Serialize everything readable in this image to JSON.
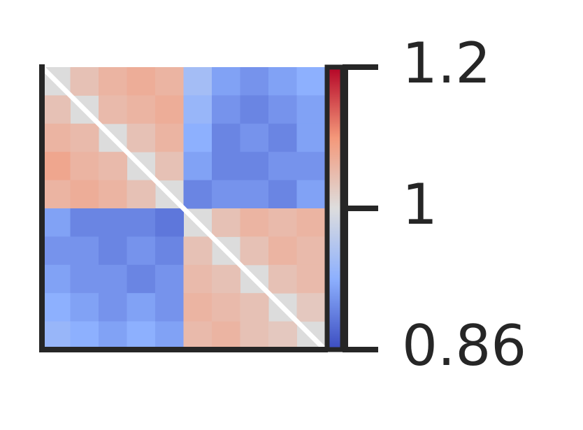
{
  "chart_data": {
    "type": "heatmap",
    "values": [
      [
        null,
        1.04,
        1.06,
        1.07,
        1.06,
        0.95,
        0.92,
        0.91,
        0.92,
        0.93
      ],
      [
        1.04,
        null,
        1.05,
        1.06,
        1.07,
        0.94,
        0.91,
        0.9,
        0.91,
        0.92
      ],
      [
        1.06,
        1.05,
        null,
        1.04,
        1.06,
        0.93,
        0.9,
        0.91,
        0.9,
        0.92
      ],
      [
        1.08,
        1.06,
        1.05,
        null,
        1.04,
        0.92,
        0.9,
        0.9,
        0.91,
        0.91
      ],
      [
        1.06,
        1.07,
        1.06,
        1.04,
        null,
        0.9,
        0.91,
        0.91,
        0.9,
        0.92
      ],
      [
        0.92,
        0.9,
        0.9,
        0.9,
        0.89,
        null,
        1.04,
        1.06,
        1.05,
        1.06
      ],
      [
        0.91,
        0.91,
        0.9,
        0.91,
        0.9,
        1.04,
        null,
        1.04,
        1.06,
        1.05
      ],
      [
        0.92,
        0.91,
        0.91,
        0.9,
        0.91,
        1.05,
        1.04,
        null,
        1.04,
        1.05
      ],
      [
        0.93,
        0.92,
        0.91,
        0.92,
        0.91,
        1.06,
        1.05,
        1.04,
        null,
        1.03
      ],
      [
        0.94,
        0.93,
        0.92,
        0.93,
        0.92,
        1.05,
        1.06,
        1.04,
        1.03,
        null
      ]
    ],
    "colormap": "coolwarm",
    "clim": [
      0.86,
      1.2
    ],
    "vcenter": 1,
    "cticks": [
      1.2,
      1,
      0.86
    ]
  }
}
